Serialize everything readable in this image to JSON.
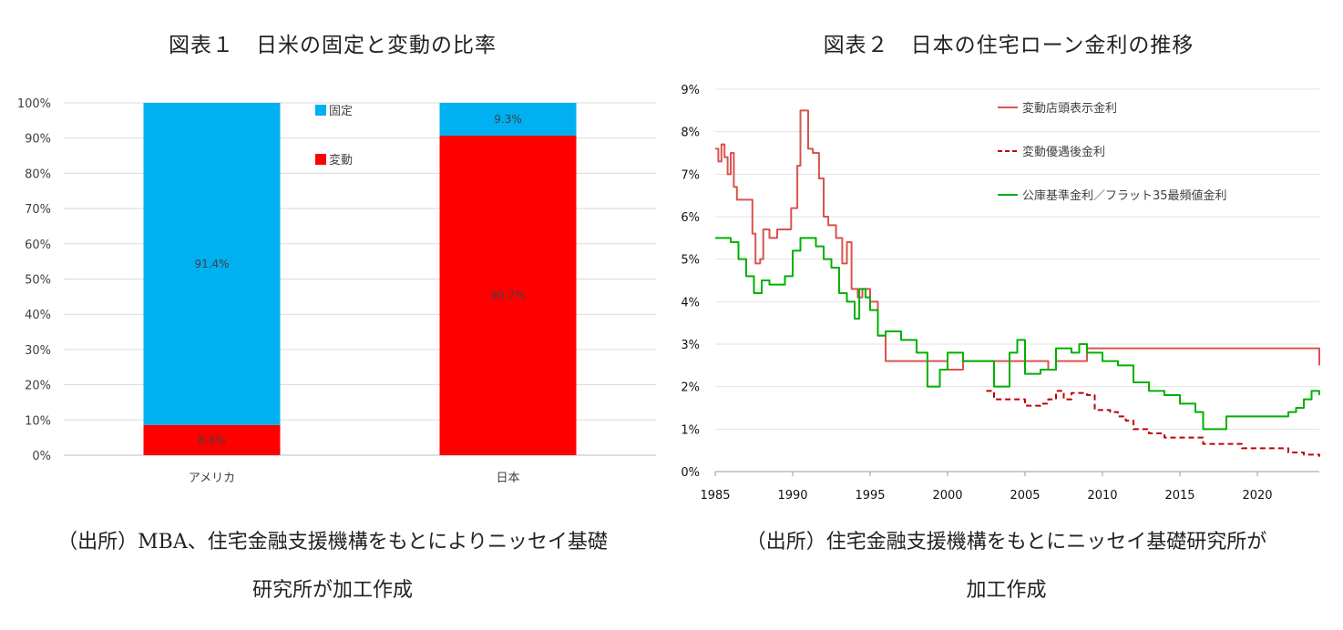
{
  "chart_data": [
    {
      "type": "bar",
      "stacked": true,
      "title": "図表１　日米の固定と変動の比率",
      "categories": [
        "アメリカ",
        "日本"
      ],
      "series": [
        {
          "name": "変動",
          "color": "#ff0000",
          "values": [
            8.6,
            90.7
          ],
          "labels": [
            "8.6%",
            "90.7%"
          ]
        },
        {
          "name": "固定",
          "color": "#00b0f0",
          "values": [
            91.4,
            9.3
          ],
          "labels": [
            "91.4%",
            "9.3%"
          ]
        }
      ],
      "ylim": [
        0,
        100
      ],
      "yticks": [
        "0%",
        "10%",
        "20%",
        "30%",
        "40%",
        "50%",
        "60%",
        "70%",
        "80%",
        "90%",
        "100%"
      ],
      "grid": true,
      "legend": "top-right",
      "legend_order": [
        "固定",
        "変動"
      ]
    },
    {
      "type": "line",
      "title": "図表２　日本の住宅ローン金利の推移",
      "xlim": [
        1985,
        2024
      ],
      "ylim": [
        0,
        9
      ],
      "xticks": [
        "1985",
        "1990",
        "1995",
        "2000",
        "2005",
        "2010",
        "2015",
        "2020"
      ],
      "yticks": [
        "0%",
        "1%",
        "2%",
        "3%",
        "4%",
        "5%",
        "6%",
        "7%",
        "8%",
        "9%"
      ],
      "grid": true,
      "legend": "top-right",
      "series": [
        {
          "name": "変動店頭表示金利",
          "color": "#d9534f",
          "style": "solid",
          "x": [
            1985.0,
            1985.2,
            1985.4,
            1985.6,
            1985.8,
            1986.0,
            1986.2,
            1986.4,
            1987.0,
            1987.4,
            1987.6,
            1987.9,
            1988.1,
            1988.5,
            1989.0,
            1989.5,
            1989.9,
            1990.3,
            1990.5,
            1990.8,
            1991.0,
            1991.3,
            1991.7,
            1992.0,
            1992.3,
            1992.8,
            1993.2,
            1993.5,
            1993.8,
            1994.2,
            1994.5,
            1995.0,
            1995.5,
            1996.0,
            2000.0,
            2001.0,
            2006.5,
            2007.0,
            2009.0,
            2024.0
          ],
          "y": [
            7.6,
            7.3,
            7.7,
            7.4,
            7.0,
            7.5,
            6.7,
            6.4,
            6.4,
            5.6,
            4.9,
            5.0,
            5.7,
            5.5,
            5.7,
            5.7,
            6.2,
            7.2,
            8.5,
            8.5,
            7.6,
            7.5,
            6.9,
            6.0,
            5.8,
            5.5,
            4.9,
            5.4,
            4.3,
            4.1,
            4.3,
            4.0,
            3.2,
            2.6,
            2.4,
            2.6,
            2.4,
            2.6,
            2.9,
            2.5
          ]
        },
        {
          "name": "変動優遇後金利",
          "color": "#c00000",
          "style": "dashed",
          "x": [
            2002.5,
            2003.0,
            2004.0,
            2005.0,
            2006.0,
            2006.5,
            2007.0,
            2007.5,
            2008.0,
            2009.0,
            2009.5,
            2010.5,
            2011.0,
            2011.5,
            2012.0,
            2013.0,
            2014.0,
            2016.0,
            2016.5,
            2019.0,
            2022.0,
            2023.0,
            2024.0
          ],
          "y": [
            1.9,
            1.7,
            1.7,
            1.55,
            1.6,
            1.7,
            1.9,
            1.7,
            1.85,
            1.8,
            1.45,
            1.4,
            1.3,
            1.2,
            1.0,
            0.9,
            0.8,
            0.8,
            0.65,
            0.55,
            0.45,
            0.4,
            0.35
          ]
        },
        {
          "name": "公庫基準金利／フラット35最頻値金利",
          "color": "#00b000",
          "style": "solid",
          "x": [
            1985.0,
            1985.5,
            1986.0,
            1986.5,
            1987.0,
            1987.5,
            1988.0,
            1988.5,
            1989.0,
            1989.5,
            1990.0,
            1990.5,
            1991.0,
            1991.5,
            1992.0,
            1992.5,
            1993.0,
            1993.5,
            1994.0,
            1994.3,
            1994.7,
            1995.0,
            1995.5,
            1996.0,
            1997.0,
            1998.0,
            1998.7,
            1999.5,
            2000.0,
            2001.0,
            2002.0,
            2003.0,
            2004.0,
            2004.5,
            2005.0,
            2006.0,
            2007.0,
            2008.0,
            2008.5,
            2009.0,
            2010.0,
            2011.0,
            2012.0,
            2013.0,
            2014.0,
            2015.0,
            2016.0,
            2016.5,
            2017.0,
            2018.0,
            2019.0,
            2020.0,
            2021.0,
            2022.0,
            2022.5,
            2023.0,
            2023.5,
            2024.0
          ],
          "y": [
            5.5,
            5.5,
            5.4,
            5.0,
            4.6,
            4.2,
            4.5,
            4.4,
            4.4,
            4.6,
            5.2,
            5.5,
            5.5,
            5.3,
            5.0,
            4.8,
            4.2,
            4.0,
            3.6,
            4.3,
            4.1,
            3.8,
            3.2,
            3.3,
            3.1,
            2.8,
            2.0,
            2.4,
            2.8,
            2.6,
            2.6,
            2.0,
            2.8,
            3.1,
            2.3,
            2.4,
            2.9,
            2.8,
            3.0,
            2.8,
            2.6,
            2.5,
            2.1,
            1.9,
            1.8,
            1.6,
            1.4,
            1.0,
            1.0,
            1.3,
            1.3,
            1.3,
            1.3,
            1.4,
            1.5,
            1.7,
            1.9,
            1.8
          ]
        }
      ]
    }
  ],
  "source1": {
    "line1": "（出所）MBA、住宅金融支援機構をもとによりニッセイ基礎",
    "line2": "研究所が加工作成"
  },
  "source2": {
    "line1": "（出所）住宅金融支援機構をもとにニッセイ基礎研究所が",
    "line2": "加工作成"
  }
}
